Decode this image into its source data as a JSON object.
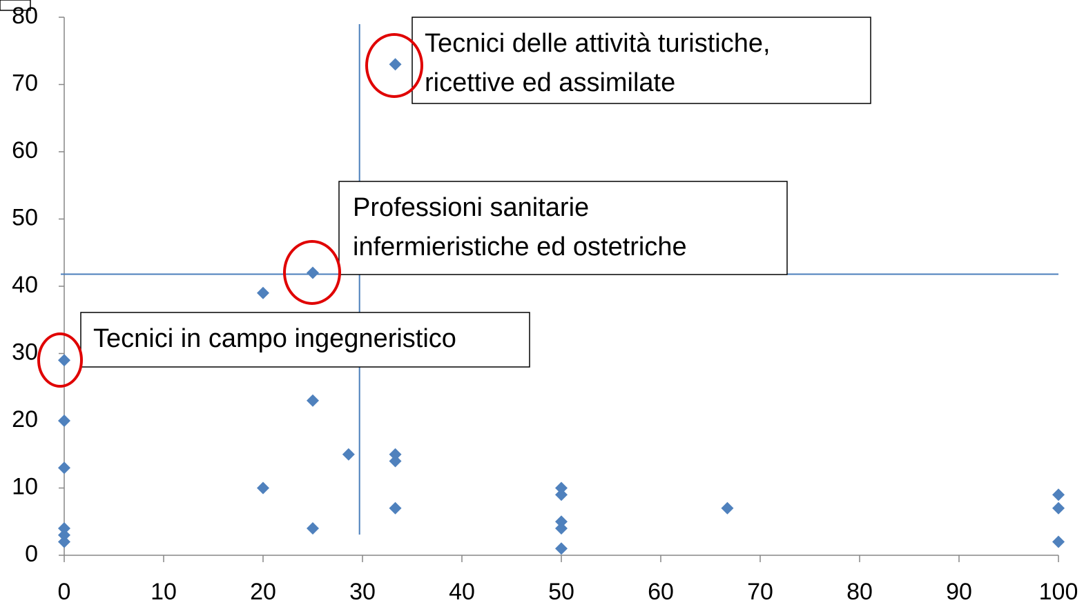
{
  "chart_data": {
    "type": "scatter",
    "x": [
      0,
      0,
      0,
      0,
      0,
      0,
      20,
      20,
      25,
      25,
      25,
      28.6,
      33.3,
      33.3,
      33.3,
      33.3,
      50,
      50,
      50,
      50,
      50,
      66.7,
      100,
      100,
      100
    ],
    "values": [
      2,
      3,
      4,
      13,
      20,
      29,
      39,
      10,
      42,
      23,
      4,
      15,
      73,
      15,
      14,
      7,
      10,
      9,
      5,
      4,
      1,
      7,
      9,
      7,
      2
    ],
    "color": "#4f81bd",
    "xlim": [
      0,
      100
    ],
    "xticks": [
      0,
      10,
      20,
      30,
      40,
      50,
      60,
      70,
      80,
      90,
      100
    ],
    "ylim": [
      0,
      80
    ],
    "yticks": [
      0,
      10,
      20,
      30,
      40,
      50,
      60,
      70,
      80
    ],
    "reference_lines": {
      "x": 29.7,
      "y": 41.8,
      "color": "#4a7ebb"
    },
    "annotations": [
      {
        "lines": [
          "Tecnici delle attività turistiche,",
          "ricettive ed assimilate"
        ]
      },
      {
        "lines": [
          "Professioni sanitarie",
          "infermieristiche ed ostetriche"
        ]
      },
      {
        "lines": [
          "Tecnici in campo ingegneristico"
        ]
      }
    ]
  }
}
